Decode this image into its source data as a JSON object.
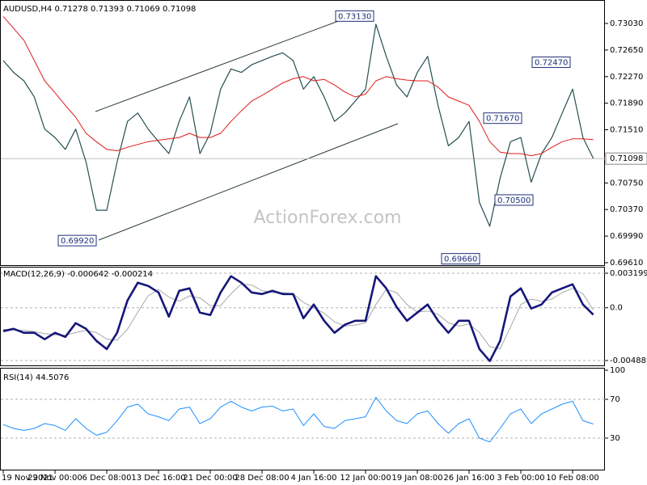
{
  "chart_data": [
    {
      "type": "line",
      "title": "AUDUSD,H4  0.71278 0.71393 0.71069 0.71098",
      "watermark": "ActionForex.com",
      "ylim": [
        0.69575,
        0.73342
      ],
      "yticks": [
        {
          "value": 0.7303,
          "label": "0.73030"
        },
        {
          "value": 0.7265,
          "label": "0.72650"
        },
        {
          "value": 0.7227,
          "label": "0.72270"
        },
        {
          "value": 0.7189,
          "label": "0.71890"
        },
        {
          "value": 0.7151,
          "label": "0.71510"
        },
        {
          "value": 0.7075,
          "label": "0.70750"
        },
        {
          "value": 0.7037,
          "label": "0.70370"
        },
        {
          "value": 0.6999,
          "label": "0.69990"
        },
        {
          "value": 0.6961,
          "label": "0.69610"
        }
      ],
      "grid": false,
      "last": {
        "value": 0.71098,
        "label": "0.71098"
      },
      "annotations": [
        {
          "value": 0.7313,
          "label": "0.73130"
        },
        {
          "value": 0.7247,
          "label": "0.72470"
        },
        {
          "value": 0.7167,
          "label": "0.71670"
        },
        {
          "value": 0.705,
          "label": "0.70500"
        },
        {
          "value": 0.6992,
          "label": "0.69920"
        },
        {
          "value": 0.6966,
          "label": "0.69660"
        }
      ],
      "series": [
        {
          "color": "#24504f",
          "values": [
            0.725,
            0.7233,
            0.7221,
            0.7198,
            0.7152,
            0.714,
            0.7123,
            0.7152,
            0.7105,
            0.7036,
            0.7036,
            0.7105,
            0.7163,
            0.7175,
            0.7152,
            0.7134,
            0.7117,
            0.7163,
            0.7198,
            0.7117,
            0.7146,
            0.7209,
            0.7238,
            0.7233,
            0.7244,
            0.725,
            0.7256,
            0.7261,
            0.725,
            0.7209,
            0.7227,
            0.7198,
            0.7163,
            0.7175,
            0.7192,
            0.7209,
            0.7302,
            0.7256,
            0.7215,
            0.7198,
            0.7233,
            0.7256,
            0.7186,
            0.7128,
            0.714,
            0.7163,
            0.7047,
            0.7013,
            0.7082,
            0.7134,
            0.714,
            0.7076,
            0.7117,
            0.714,
            0.7175,
            0.7209,
            0.714,
            0.711
          ]
        },
        {
          "color": "#e01b1b",
          "values": [
            0.7313,
            0.7296,
            0.7279,
            0.725,
            0.7221,
            0.7204,
            0.7186,
            0.7169,
            0.7146,
            0.7134,
            0.7123,
            0.7121,
            0.7126,
            0.713,
            0.7134,
            0.7136,
            0.7138,
            0.714,
            0.7146,
            0.714,
            0.714,
            0.7146,
            0.7163,
            0.7178,
            0.7192,
            0.72,
            0.7209,
            0.7218,
            0.7224,
            0.7227,
            0.7221,
            0.7223,
            0.7215,
            0.7205,
            0.7198,
            0.7202,
            0.7221,
            0.7227,
            0.7224,
            0.7222,
            0.7221,
            0.7221,
            0.7212,
            0.7198,
            0.7192,
            0.7186,
            0.7163,
            0.7134,
            0.7119,
            0.7117,
            0.7117,
            0.7114,
            0.7117,
            0.7126,
            0.7134,
            0.7138,
            0.7138,
            0.7137
          ]
        }
      ]
    },
    {
      "type": "line",
      "title": "MACD(12,26,9) -0.000642 -0.000214",
      "ylim": [
        -0.005336,
        0.003798
      ],
      "yticks": [
        0.003199,
        {
          "value": 0,
          "label": "0.0"
        },
        -0.004887
      ],
      "grid": true,
      "series": [
        {
          "color": "#a8a8a8",
          "values": [
            -0.002,
            -0.00205,
            -0.0021,
            -0.0022,
            -0.0024,
            -0.0025,
            -0.00255,
            -0.0023,
            -0.0021,
            -0.0023,
            -0.0029,
            -0.003,
            -0.002,
            -0.0004,
            0.0011,
            0.0017,
            0.001,
            0.0006,
            0.0011,
            0.0009,
            0.0002,
            0.0002,
            0.0013,
            0.0022,
            0.0021,
            0.0016,
            0.0014,
            0.0014,
            0.0013,
            0.0005,
            0.0,
            -0.0005,
            -0.0013,
            -0.0017,
            -0.0016,
            -0.0014,
            0.0003,
            0.0017,
            0.0014,
            0.0003,
            -0.0004,
            -0.0003,
            -0.0006,
            -0.0014,
            -0.0017,
            -0.0015,
            -0.0023,
            -0.0036,
            -0.0038,
            -0.0018,
            0.0003,
            0.0008,
            0.0006,
            0.0008,
            0.0014,
            0.0018,
            0.0013,
            -0.00021
          ]
        },
        {
          "color": "#16167a",
          "values": [
            -0.00217,
            -0.00195,
            -0.00232,
            -0.00232,
            -0.00292,
            -0.00232,
            -0.0027,
            -0.00142,
            -0.00195,
            -0.00307,
            -0.00382,
            -0.00232,
            0.00067,
            0.00232,
            0.00202,
            0.00142,
            -0.00082,
            0.00157,
            0.0018,
            -0.00045,
            -0.00067,
            0.00142,
            0.00292,
            0.00232,
            0.00142,
            0.00127,
            0.00157,
            0.00127,
            0.00127,
            -0.00097,
            0.0003,
            -0.0012,
            -0.00232,
            -0.00157,
            -0.0012,
            -0.0012,
            0.00292,
            0.0018,
            7e-05,
            -0.0012,
            -0.00045,
            0.0003,
            -0.0012,
            -0.00232,
            -0.0012,
            -0.0012,
            -0.00382,
            -0.00494,
            -0.00307,
            0.00105,
            0.0018,
            -7e-05,
            0.0003,
            0.00142,
            0.0018,
            0.00217,
            0.0003,
            -0.00064
          ]
        }
      ]
    },
    {
      "type": "line",
      "title": "RSI(14) 44.5076",
      "ylim": [
        0,
        100
      ],
      "yticks": [
        100,
        70,
        30
      ],
      "grid": true,
      "categories": [
        "19 Nov 2021",
        null,
        null,
        null,
        null,
        "29 Nov 00:00",
        null,
        null,
        null,
        null,
        "6 Dec 08:00",
        null,
        null,
        null,
        null,
        "13 Dec 16:00",
        null,
        null,
        null,
        null,
        "21 Dec 00:00",
        null,
        null,
        null,
        null,
        "28 Dec 08:00",
        null,
        null,
        null,
        null,
        "4 Jan 16:00",
        null,
        null,
        null,
        null,
        "12 Jan 00:00",
        null,
        null,
        null,
        null,
        "19 Jan 08:00",
        null,
        null,
        null,
        null,
        "26 Jan 16:00",
        null,
        null,
        null,
        null,
        "3 Feb 00:00",
        null,
        null,
        null,
        null,
        "10 Feb 08:00",
        null,
        null
      ],
      "series": [
        {
          "color": "#1e90ff",
          "values": [
            44,
            40,
            38,
            40,
            45,
            43,
            38,
            50,
            40,
            33,
            36,
            48,
            62,
            65,
            55,
            52,
            48,
            60,
            62,
            45,
            50,
            62,
            68,
            62,
            58,
            62,
            63,
            58,
            60,
            43,
            55,
            42,
            40,
            48,
            50,
            52,
            72,
            58,
            48,
            45,
            55,
            58,
            45,
            35,
            45,
            50,
            30,
            26,
            40,
            55,
            60,
            45,
            55,
            60,
            65,
            68,
            48,
            44.5
          ]
        }
      ]
    }
  ]
}
